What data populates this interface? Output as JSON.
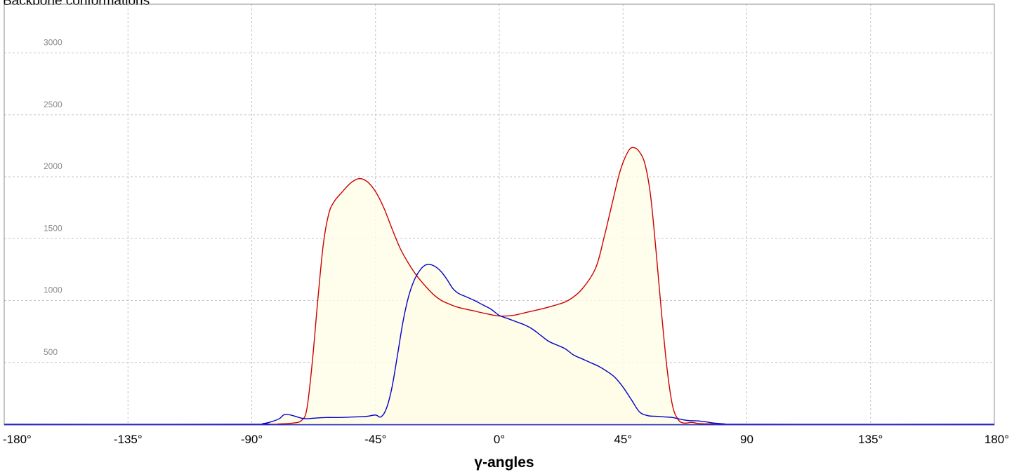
{
  "title": "Backbone conformations",
  "chart_data": {
    "type": "area",
    "xlabel": "γ-angles",
    "xlim": [
      -180,
      180
    ],
    "ylim": [
      0,
      3250
    ],
    "x_ticks": [
      {
        "value": -180,
        "label": "-180°"
      },
      {
        "value": -135,
        "label": "-135°"
      },
      {
        "value": -90,
        "label": "-90°"
      },
      {
        "value": -45,
        "label": "-45°"
      },
      {
        "value": 0,
        "label": "0°"
      },
      {
        "value": 45,
        "label": "45°"
      },
      {
        "value": 90,
        "label": "90"
      },
      {
        "value": 135,
        "label": "135°"
      },
      {
        "value": 180,
        "label": "180°"
      }
    ],
    "y_ticks": [
      {
        "value": 500,
        "label": "500"
      },
      {
        "value": 1000,
        "label": "1000"
      },
      {
        "value": 1500,
        "label": "1500"
      },
      {
        "value": 2000,
        "label": "2000"
      },
      {
        "value": 2500,
        "label": "2500"
      },
      {
        "value": 3000,
        "label": "3000"
      }
    ],
    "grid": true,
    "series": [
      {
        "color": "#cc0000",
        "fill": "#fffde6",
        "points": [
          [
            -180,
            0
          ],
          [
            -90,
            0
          ],
          [
            -80,
            3
          ],
          [
            -75,
            10
          ],
          [
            -72,
            30
          ],
          [
            -70,
            120
          ],
          [
            -68,
            500
          ],
          [
            -66,
            1000
          ],
          [
            -64,
            1450
          ],
          [
            -62,
            1700
          ],
          [
            -60,
            1800
          ],
          [
            -57,
            1880
          ],
          [
            -54,
            1950
          ],
          [
            -51,
            1985
          ],
          [
            -48,
            1960
          ],
          [
            -45,
            1880
          ],
          [
            -42,
            1750
          ],
          [
            -39,
            1580
          ],
          [
            -36,
            1420
          ],
          [
            -33,
            1300
          ],
          [
            -30,
            1200
          ],
          [
            -27,
            1120
          ],
          [
            -24,
            1050
          ],
          [
            -21,
            1000
          ],
          [
            -18,
            970
          ],
          [
            -15,
            945
          ],
          [
            -10,
            920
          ],
          [
            -5,
            895
          ],
          [
            0,
            875
          ],
          [
            5,
            880
          ],
          [
            10,
            905
          ],
          [
            15,
            930
          ],
          [
            20,
            960
          ],
          [
            25,
            1000
          ],
          [
            30,
            1090
          ],
          [
            35,
            1260
          ],
          [
            38,
            1500
          ],
          [
            41,
            1780
          ],
          [
            44,
            2050
          ],
          [
            47,
            2210
          ],
          [
            49,
            2235
          ],
          [
            51,
            2200
          ],
          [
            53,
            2100
          ],
          [
            55,
            1850
          ],
          [
            57,
            1400
          ],
          [
            59,
            900
          ],
          [
            61,
            450
          ],
          [
            63,
            150
          ],
          [
            65,
            40
          ],
          [
            67,
            10
          ],
          [
            70,
            15
          ],
          [
            73,
            5
          ],
          [
            78,
            3
          ],
          [
            85,
            0
          ],
          [
            180,
            0
          ]
        ]
      },
      {
        "color": "#0000cc",
        "fill": "#fffde6",
        "points": [
          [
            -180,
            0
          ],
          [
            -92,
            0
          ],
          [
            -86,
            5
          ],
          [
            -83,
            20
          ],
          [
            -80,
            45
          ],
          [
            -78,
            80
          ],
          [
            -75,
            70
          ],
          [
            -72,
            50
          ],
          [
            -70,
            45
          ],
          [
            -67,
            50
          ],
          [
            -63,
            55
          ],
          [
            -58,
            55
          ],
          [
            -52,
            60
          ],
          [
            -48,
            65
          ],
          [
            -45,
            75
          ],
          [
            -43,
            60
          ],
          [
            -41,
            130
          ],
          [
            -39,
            300
          ],
          [
            -37,
            560
          ],
          [
            -35,
            830
          ],
          [
            -33,
            1030
          ],
          [
            -31,
            1160
          ],
          [
            -29,
            1240
          ],
          [
            -27,
            1285
          ],
          [
            -25,
            1290
          ],
          [
            -23,
            1270
          ],
          [
            -21,
            1230
          ],
          [
            -19,
            1170
          ],
          [
            -17,
            1100
          ],
          [
            -15,
            1060
          ],
          [
            -12,
            1030
          ],
          [
            -9,
            1000
          ],
          [
            -6,
            965
          ],
          [
            -3,
            930
          ],
          [
            0,
            880
          ],
          [
            3,
            855
          ],
          [
            6,
            830
          ],
          [
            9,
            805
          ],
          [
            12,
            770
          ],
          [
            15,
            720
          ],
          [
            18,
            670
          ],
          [
            21,
            640
          ],
          [
            24,
            610
          ],
          [
            27,
            560
          ],
          [
            30,
            530
          ],
          [
            33,
            500
          ],
          [
            36,
            470
          ],
          [
            39,
            430
          ],
          [
            42,
            380
          ],
          [
            45,
            300
          ],
          [
            48,
            200
          ],
          [
            51,
            100
          ],
          [
            54,
            70
          ],
          [
            57,
            65
          ],
          [
            60,
            60
          ],
          [
            63,
            55
          ],
          [
            66,
            40
          ],
          [
            69,
            30
          ],
          [
            72,
            28
          ],
          [
            75,
            20
          ],
          [
            78,
            10
          ],
          [
            82,
            3
          ],
          [
            88,
            0
          ],
          [
            180,
            0
          ]
        ]
      }
    ]
  }
}
